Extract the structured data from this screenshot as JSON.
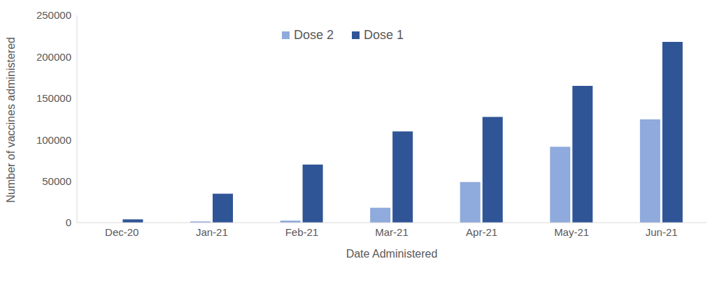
{
  "chart_data": {
    "type": "bar",
    "x_label": "Date Administered",
    "y_label": "Number of vaccines administered",
    "categories": [
      "Dec-20",
      "Jan-21",
      "Feb-21",
      "Mar-21",
      "Apr-21",
      "May-21",
      "Jun-21"
    ],
    "series": [
      {
        "name": "Dose 2",
        "color": "#8faadc",
        "values": [
          0,
          1500,
          2500,
          18000,
          49000,
          91500,
          124500
        ]
      },
      {
        "name": "Dose 1",
        "color": "#2f5597",
        "values": [
          4000,
          35000,
          70000,
          110000,
          127500,
          165000,
          218000
        ]
      }
    ],
    "ylim": [
      0,
      250000
    ],
    "yticks": [
      0,
      50000,
      100000,
      150000,
      200000,
      250000
    ],
    "grid": false,
    "legend": "top"
  }
}
